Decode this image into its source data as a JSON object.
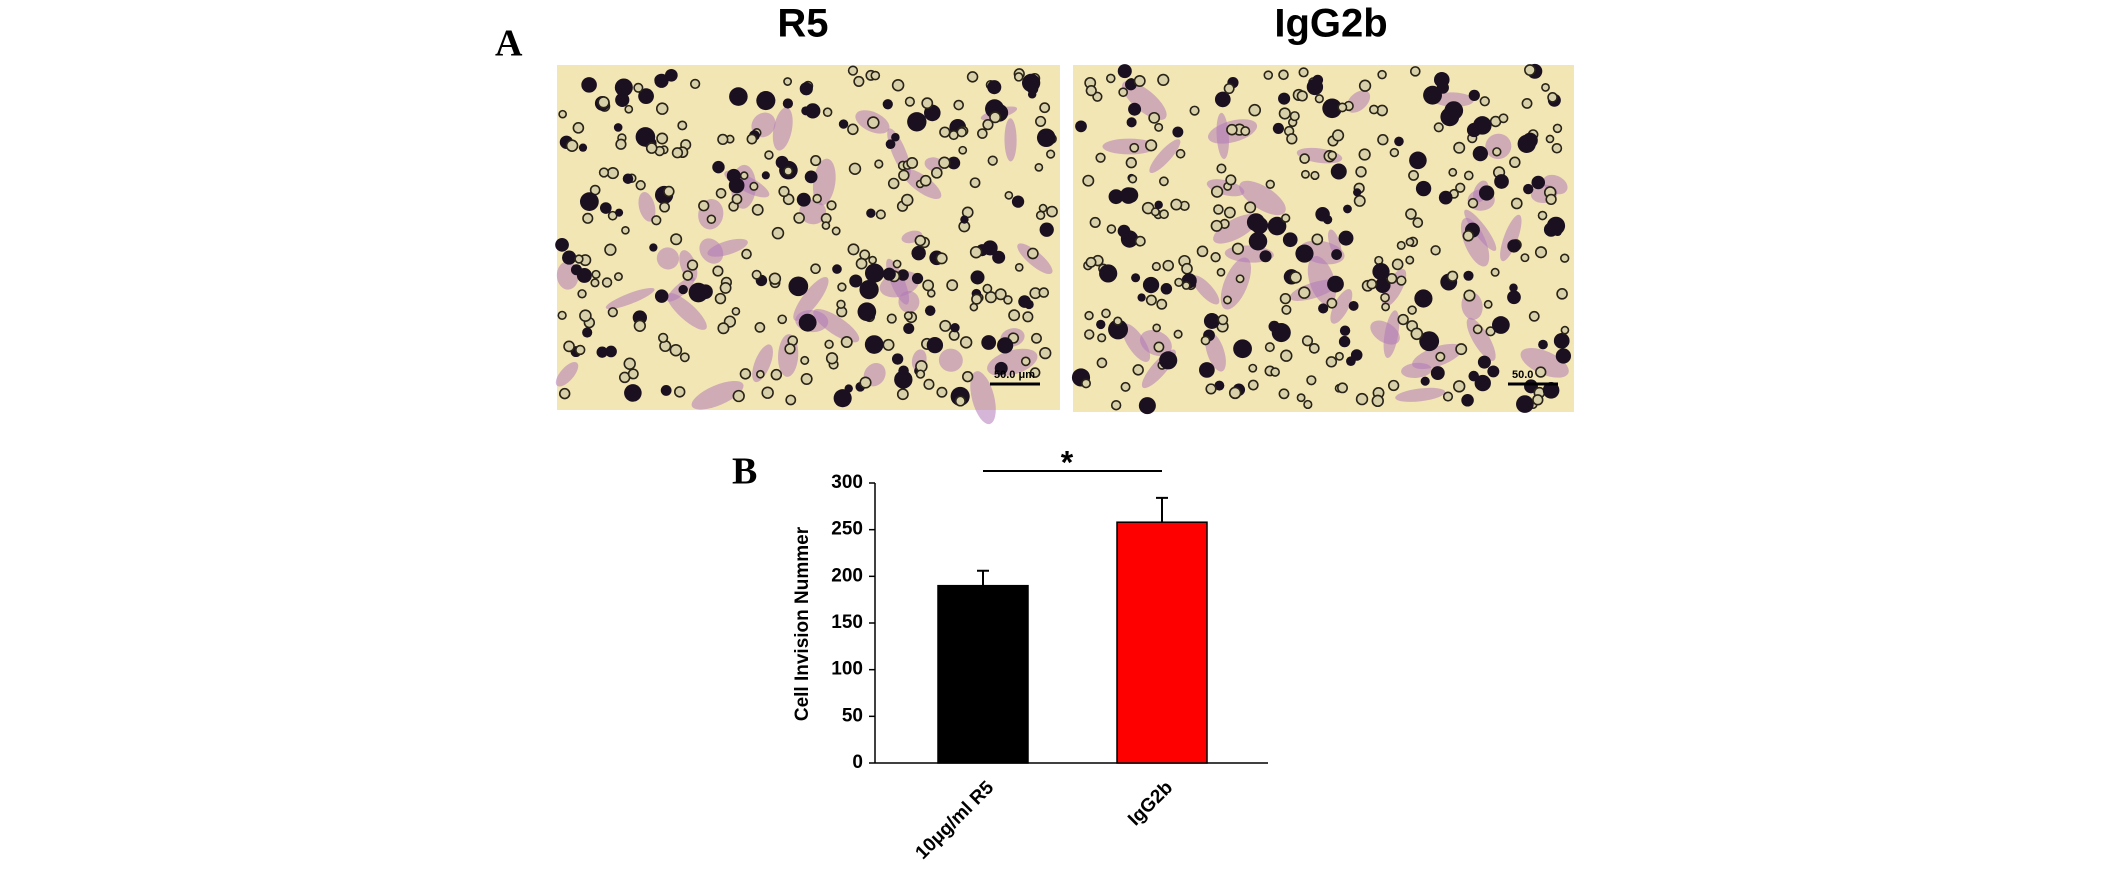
{
  "panels": {
    "a_label": "A",
    "b_label": "B",
    "images": [
      {
        "title": "R5",
        "scale_label": "50.0 μm"
      },
      {
        "title": "IgG2b",
        "scale_label": "50.0"
      }
    ]
  },
  "chart_data": {
    "type": "bar",
    "categories": [
      "10μg/ml R5",
      "IgG2b"
    ],
    "series": [
      {
        "name": "Cell Invision Nummer",
        "colors": [
          "#000000",
          "#ff0000"
        ],
        "values": [
          190,
          258
        ],
        "errors": [
          16,
          26
        ]
      }
    ],
    "ylabel": "Cell Invision Nummer",
    "ylim": [
      0,
      300
    ],
    "yticks": [
      0,
      50,
      100,
      150,
      200,
      250,
      300
    ],
    "annotation": "*"
  }
}
